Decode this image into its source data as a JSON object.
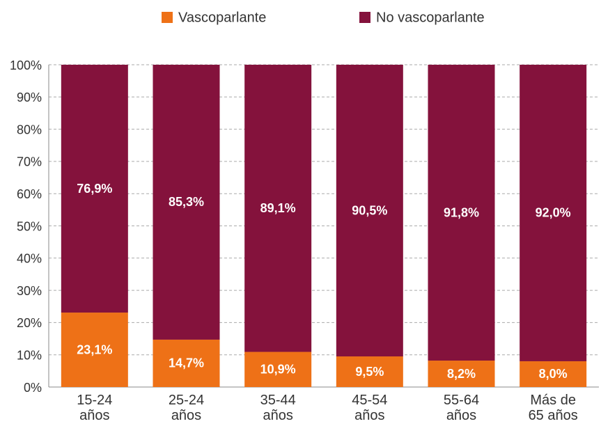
{
  "chart_data": {
    "type": "stacked_bar",
    "categories": [
      "15-24\naños",
      "25-24\naños",
      "35-44\naños",
      "45-54\naños",
      "55-64\naños",
      "Más de\n65 años"
    ],
    "series": [
      {
        "name": "Vascoparlante",
        "color": "#ee7117",
        "values": [
          23.1,
          14.7,
          10.9,
          9.5,
          8.2,
          8.0
        ],
        "value_labels": [
          "23,1%",
          "14,7%",
          "10,9%",
          "9,5%",
          "8,2%",
          "8,0%"
        ]
      },
      {
        "name": "No vascoparlante",
        "color": "#84123c",
        "values": [
          76.9,
          85.3,
          89.1,
          90.5,
          91.8,
          92.0
        ],
        "value_labels": [
          "76,9%",
          "85,3%",
          "89,1%",
          "90,5%",
          "91,8%",
          "92,0%"
        ]
      }
    ],
    "ylim": [
      0,
      100
    ],
    "yticks": [
      {
        "value": 0,
        "label": "0%"
      },
      {
        "value": 10,
        "label": "10%"
      },
      {
        "value": 20,
        "label": "20%"
      },
      {
        "value": 30,
        "label": "30%"
      },
      {
        "value": 40,
        "label": "40%"
      },
      {
        "value": 50,
        "label": "50%"
      },
      {
        "value": 60,
        "label": "60%"
      },
      {
        "value": 70,
        "label": "70%"
      },
      {
        "value": 80,
        "label": "80%"
      },
      {
        "value": 90,
        "label": "90%"
      },
      {
        "value": 100,
        "label": "100%"
      }
    ],
    "grid": true,
    "legend": "top"
  }
}
